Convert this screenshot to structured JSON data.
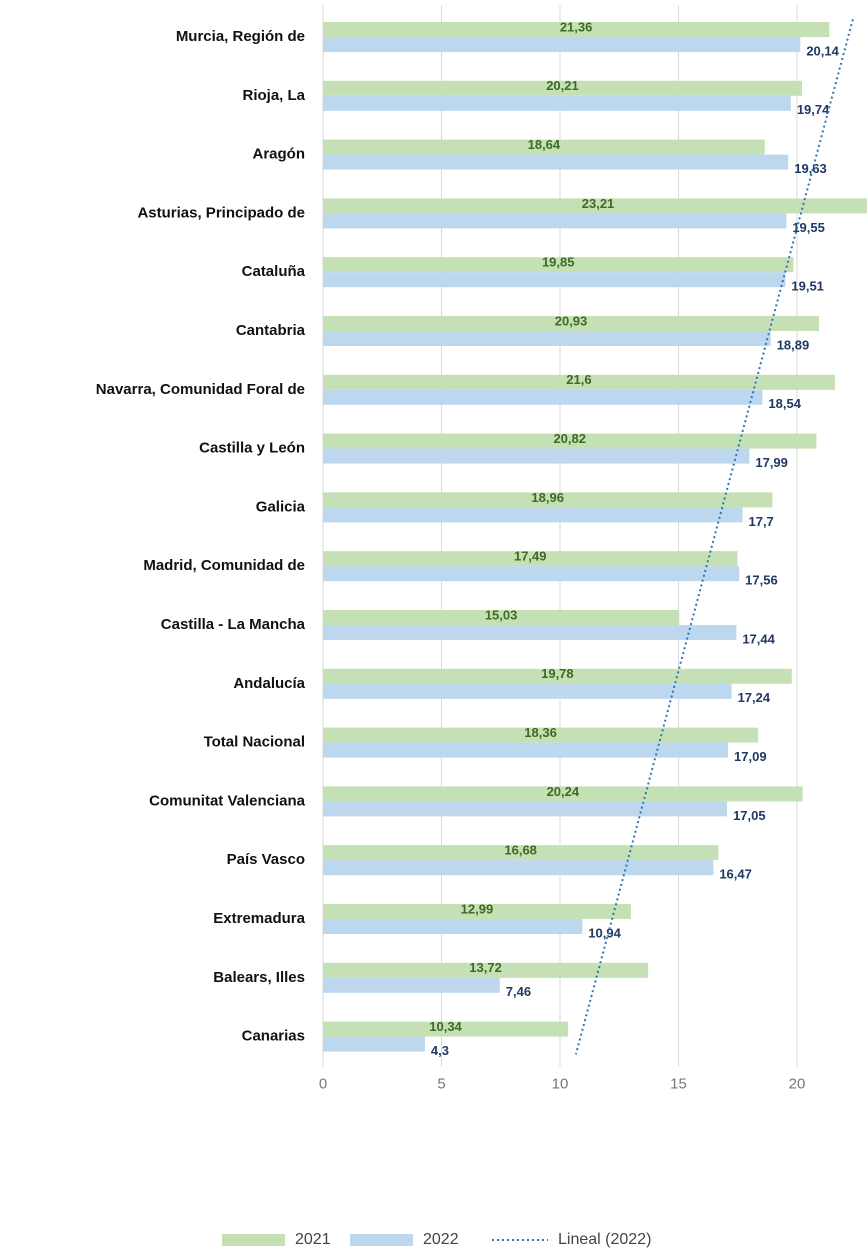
{
  "chart_data": {
    "type": "barh",
    "categories": [
      "Murcia, Región de",
      "Rioja, La",
      "Aragón",
      "Asturias, Principado de",
      "Cataluña",
      "Cantabria",
      "Navarra, Comunidad Foral de",
      "Castilla y León",
      "Galicia",
      "Madrid, Comunidad de",
      "Castilla - La Mancha",
      "Andalucía",
      "Total Nacional",
      "Comunitat Valenciana",
      "País Vasco",
      "Extremadura",
      "Balears, Illes",
      "Canarias"
    ],
    "series": [
      {
        "name": "2021",
        "color": "#c5e0b4",
        "label_color": "#3d6b22",
        "values": [
          21.36,
          20.21,
          18.64,
          23.21,
          19.85,
          20.93,
          21.6,
          20.82,
          18.96,
          17.49,
          15.03,
          19.78,
          18.36,
          20.24,
          16.68,
          12.99,
          13.72,
          10.34
        ],
        "value_labels": [
          "21,36",
          "20,21",
          "18,64",
          "23,21",
          "19,85",
          "20,93",
          "21,6",
          "20,82",
          "18,96",
          "17,49",
          "15,03",
          "19,78",
          "18,36",
          "20,24",
          "16,68",
          "12,99",
          "13,72",
          "10,34"
        ]
      },
      {
        "name": "2022",
        "color": "#bdd7ee",
        "label_color": "#1f3864",
        "values": [
          20.14,
          19.74,
          19.63,
          19.55,
          19.51,
          18.89,
          18.54,
          17.99,
          17.7,
          17.56,
          17.44,
          17.24,
          17.09,
          17.05,
          16.47,
          10.94,
          7.46,
          4.3
        ],
        "value_labels": [
          "20,14",
          "19,74",
          "19,63",
          "19,55",
          "19,51",
          "18,89",
          "18,54",
          "17,99",
          "17,7",
          "17,56",
          "17,44",
          "17,24",
          "17,09",
          "17,05",
          "16,47",
          "10,94",
          "7,46",
          "4,3"
        ]
      }
    ],
    "trendline": {
      "name": "Lineal (2022)",
      "series": 1,
      "color": "#2e75b6"
    },
    "xlim": [
      0,
      25
    ],
    "xticks": [
      0,
      5,
      10,
      15,
      20
    ],
    "grid": true
  }
}
